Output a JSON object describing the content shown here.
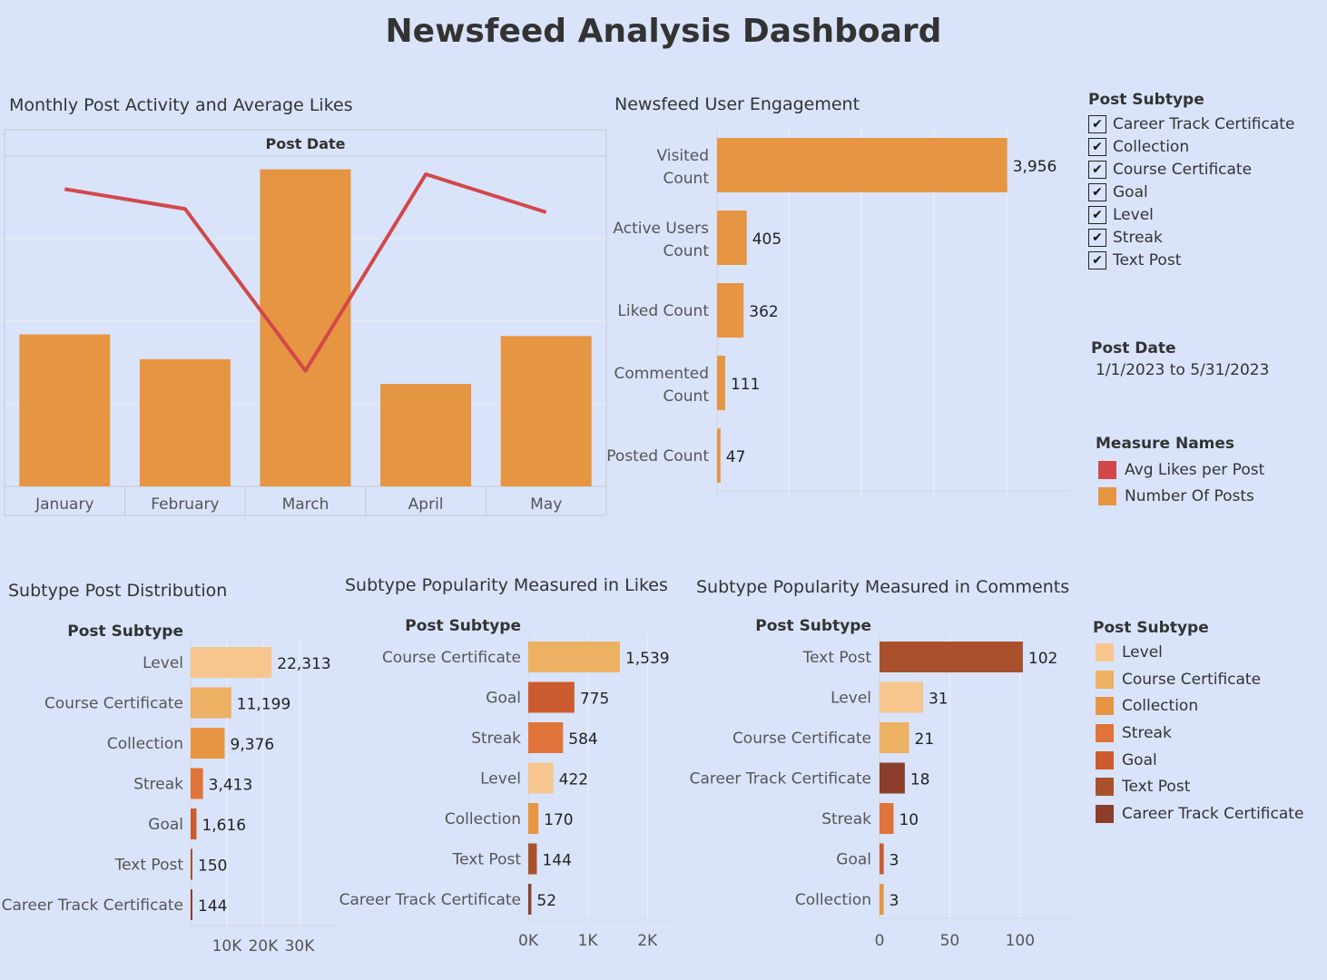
{
  "title": "Newsfeed Analysis Dashboard",
  "colors": {
    "background": "#d9e4fb",
    "avg_likes": "#d2484a",
    "posts": "#e69542",
    "level": "#f6c68e",
    "course_certificate": "#ecb162",
    "collection": "#e69542",
    "streak": "#e0733a",
    "goal": "#cc5b2f",
    "text_post": "#a9512d",
    "career_track_certificate": "#8c3e2a"
  },
  "filters": {
    "subtype": {
      "title": "Post Subtype",
      "items": [
        {
          "label": "Career Track Certificate",
          "checked": true
        },
        {
          "label": "Collection",
          "checked": true
        },
        {
          "label": "Course Certificate",
          "checked": true
        },
        {
          "label": "Goal",
          "checked": true
        },
        {
          "label": "Level",
          "checked": true
        },
        {
          "label": "Streak",
          "checked": true
        },
        {
          "label": "Text Post",
          "checked": true
        }
      ]
    },
    "date": {
      "title": "Post Date",
      "value": "1/1/2023 to 5/31/2023"
    }
  },
  "legends": {
    "measure": {
      "title": "Measure Names",
      "items": [
        {
          "label": "Avg Likes per Post",
          "color": "#d2484a"
        },
        {
          "label": "Number Of Posts",
          "color": "#e69542"
        }
      ]
    },
    "subtype": {
      "title": "Post Subtype",
      "items": [
        {
          "label": "Level",
          "color": "#f6c68e"
        },
        {
          "label": "Course Certificate",
          "color": "#ecb162"
        },
        {
          "label": "Collection",
          "color": "#e69542"
        },
        {
          "label": "Streak",
          "color": "#e0733a"
        },
        {
          "label": "Goal",
          "color": "#cc5b2f"
        },
        {
          "label": "Text Post",
          "color": "#a9512d"
        },
        {
          "label": "Career Track Certificate",
          "color": "#8c3e2a"
        }
      ]
    }
  },
  "chart_data": [
    {
      "id": "monthly",
      "type": "bar",
      "title": "Monthly Post Activity and Average Likes",
      "header": "Post Date",
      "categories": [
        "January",
        "February",
        "March",
        "April",
        "May"
      ],
      "series": [
        {
          "name": "Number Of Posts",
          "type": "bar",
          "color": "#e69542",
          "values": [
            0.46,
            0.385,
            0.96,
            0.31,
            0.455
          ]
        },
        {
          "name": "Avg Likes per Post",
          "type": "line",
          "color": "#d2484a",
          "values": [
            0.9,
            0.84,
            0.35,
            0.945,
            0.83
          ]
        }
      ],
      "ylim": [
        0,
        1
      ],
      "grid": true
    },
    {
      "id": "engagement",
      "type": "bar",
      "orientation": "horizontal",
      "title": "Newsfeed User Engagement",
      "categories": [
        "Visited Count",
        "Active Users Count",
        "Liked Count",
        "Commented Count",
        "Posted Count"
      ],
      "values": [
        3956,
        405,
        362,
        111,
        47
      ],
      "value_labels": [
        "3,956",
        "405",
        "362",
        "111",
        "47"
      ],
      "color": "#e69542",
      "xlim": [
        0,
        4900
      ],
      "grid": true
    },
    {
      "id": "distribution",
      "type": "bar",
      "orientation": "horizontal",
      "title": "Subtype Post Distribution",
      "header": "Post Subtype",
      "categories": [
        "Level",
        "Course Certificate",
        "Collection",
        "Streak",
        "Goal",
        "Text Post",
        "Career Track Certificate"
      ],
      "values": [
        22313,
        11199,
        9376,
        3413,
        1616,
        150,
        144
      ],
      "value_labels": [
        "22,313",
        "11,199",
        "9,376",
        "3,413",
        "1,616",
        "150",
        "144"
      ],
      "colors": [
        "#f6c68e",
        "#ecb162",
        "#e69542",
        "#e0733a",
        "#cc5b2f",
        "#a9512d",
        "#8c3e2a"
      ],
      "xlim": [
        0,
        40000
      ],
      "ticks": [
        10000,
        20000,
        30000
      ],
      "tick_labels": [
        "10K",
        "20K",
        "30K"
      ],
      "grid": true
    },
    {
      "id": "likes",
      "type": "bar",
      "orientation": "horizontal",
      "title": "Subtype Popularity Measured in Likes",
      "header": "Post Subtype",
      "categories": [
        "Course Certificate",
        "Goal",
        "Streak",
        "Level",
        "Collection",
        "Text Post",
        "Career Track Certificate"
      ],
      "values": [
        1539,
        775,
        584,
        422,
        170,
        144,
        52
      ],
      "value_labels": [
        "1,539",
        "775",
        "584",
        "422",
        "170",
        "144",
        "52"
      ],
      "colors": [
        "#ecb162",
        "#cc5b2f",
        "#e0733a",
        "#f6c68e",
        "#e69542",
        "#a9512d",
        "#8c3e2a"
      ],
      "xlim": [
        0,
        2500
      ],
      "ticks": [
        0,
        1000,
        2000
      ],
      "tick_labels": [
        "0K",
        "1K",
        "2K"
      ],
      "grid": true
    },
    {
      "id": "comments",
      "type": "bar",
      "orientation": "horizontal",
      "title": "Subtype Popularity Measured in Comments",
      "header": "Post Subtype",
      "categories": [
        "Text Post",
        "Level",
        "Course Certificate",
        "Career Track Certificate",
        "Streak",
        "Goal",
        "Collection"
      ],
      "values": [
        102,
        31,
        21,
        18,
        10,
        3,
        3
      ],
      "value_labels": [
        "102",
        "31",
        "21",
        "18",
        "10",
        "3",
        "3"
      ],
      "colors": [
        "#a9512d",
        "#f6c68e",
        "#ecb162",
        "#8c3e2a",
        "#e0733a",
        "#cc5b2f",
        "#e69542"
      ],
      "xlim": [
        0,
        135
      ],
      "ticks": [
        0,
        50,
        100
      ],
      "tick_labels": [
        "0",
        "50",
        "100"
      ],
      "grid": true
    }
  ]
}
